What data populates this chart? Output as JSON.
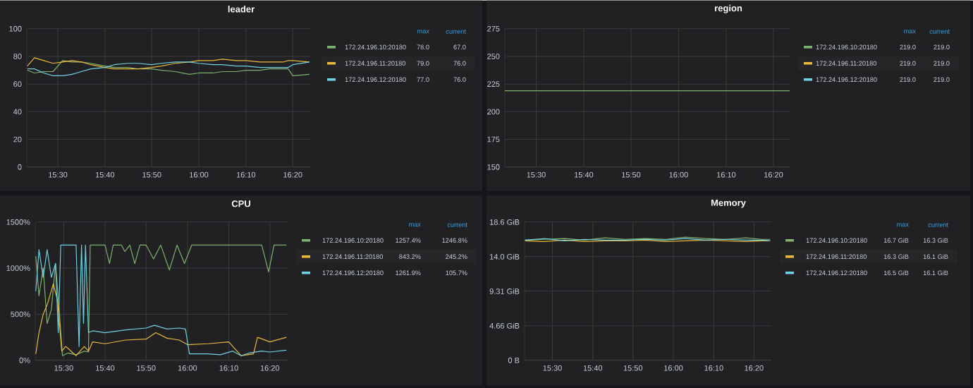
{
  "chart_data": [
    {
      "type": "line",
      "title": "leader",
      "x": [
        15.392,
        15.417,
        15.45,
        15.483,
        15.517,
        15.55,
        15.583,
        15.617,
        15.667,
        15.7,
        15.75,
        15.783,
        15.833,
        15.867,
        15.917,
        15.967,
        16.0,
        16.05,
        16.083,
        16.133,
        16.167,
        16.217,
        16.25,
        16.3,
        16.317,
        16.333,
        16.392
      ],
      "series": [
        {
          "name": "172.24.196.10:20180",
          "color": "#7eb26d",
          "values": [
            70,
            68,
            69,
            69,
            77,
            76,
            76,
            75,
            73,
            72,
            72,
            71,
            71,
            70,
            69,
            67,
            68,
            68,
            69,
            69,
            70,
            70,
            71,
            71,
            71,
            66,
            67
          ]
        },
        {
          "name": "172.24.196.11:20180",
          "color": "#eab839",
          "values": [
            73,
            79,
            77,
            75,
            76,
            77,
            76,
            74,
            72,
            71,
            71,
            71,
            72,
            73,
            75,
            76,
            77,
            77,
            78,
            77,
            77,
            76,
            76,
            76,
            77,
            77,
            76
          ]
        },
        {
          "name": "172.24.196.12:20180",
          "color": "#6ed0e0",
          "values": [
            71,
            71,
            68,
            66,
            66,
            67,
            69,
            71,
            72,
            74,
            75,
            75,
            74,
            75,
            76,
            76,
            75,
            74,
            74,
            73,
            73,
            72,
            72,
            72,
            72,
            74,
            76
          ]
        }
      ],
      "xlim": [
        15.39,
        16.395
      ],
      "xticks": [
        {
          "value": 15.5,
          "label": "15:30"
        },
        {
          "value": 15.667,
          "label": "15:40"
        },
        {
          "value": 15.833,
          "label": "15:50"
        },
        {
          "value": 16.0,
          "label": "16:00"
        },
        {
          "value": 16.167,
          "label": "16:10"
        },
        {
          "value": 16.333,
          "label": "16:20"
        }
      ],
      "ylim": [
        0,
        100
      ],
      "yticks": [
        0,
        20,
        40,
        60,
        80,
        100
      ],
      "grid": true,
      "legend": "right",
      "marker": "none",
      "line_style": "solid",
      "annotations": [
        "max",
        "current",
        "78.0",
        "67.0",
        "79.0",
        "76.0",
        "77.0",
        "76.0"
      ]
    },
    {
      "type": "line",
      "title": "region",
      "x": [
        15.39,
        16.39
      ],
      "series": [
        {
          "name": "172.24.196.10:20180",
          "color": "#7eb26d",
          "values": [
            219,
            219
          ]
        },
        {
          "name": "172.24.196.11:20180",
          "color": "#eab839",
          "values": [
            null,
            null
          ]
        },
        {
          "name": "172.24.196.12:20180",
          "color": "#6ed0e0",
          "values": [
            null,
            null
          ]
        }
      ],
      "xlim": [
        15.39,
        16.39
      ],
      "xticks": [
        {
          "value": 15.5,
          "label": "15:30"
        },
        {
          "value": 15.667,
          "label": "15:40"
        },
        {
          "value": 15.833,
          "label": "15:50"
        },
        {
          "value": 16.0,
          "label": "16:00"
        },
        {
          "value": 16.167,
          "label": "16:10"
        },
        {
          "value": 16.333,
          "label": "16:20"
        }
      ],
      "ylim": [
        150,
        275
      ],
      "yticks": [
        150,
        175,
        200,
        225,
        250,
        275
      ],
      "grid": true,
      "legend": "right",
      "marker": "none",
      "line_style": "solid",
      "annotations": [
        "max",
        "current",
        "219.0",
        "219.0",
        "219.0",
        "219.0",
        "219.0",
        "219.0"
      ]
    },
    {
      "type": "line",
      "title": "CPU",
      "series": [
        {
          "name": "172.24.196.10:20180",
          "color": "#7eb26d",
          "x": [
            15.387,
            15.4,
            15.417,
            15.433,
            15.45,
            15.467,
            15.483,
            15.495,
            15.517,
            15.55,
            15.583,
            15.6,
            15.607,
            15.667,
            15.685,
            15.7,
            15.733,
            15.747,
            15.767,
            15.787,
            15.808,
            15.833,
            15.863,
            15.892,
            15.927,
            15.958,
            15.988,
            16.017,
            16.167,
            16.3,
            16.328,
            16.35,
            16.4
          ],
          "values": [
            1130,
            700,
            1000,
            400,
            550,
            1050,
            500,
            50,
            80,
            60,
            100,
            90,
            1250,
            1250,
            1050,
            1250,
            1250,
            1180,
            1250,
            1050,
            1250,
            1250,
            1100,
            1250,
            980,
            1250,
            1050,
            1250,
            1250,
            1250,
            960,
            1250,
            1250
          ]
        },
        {
          "name": "172.24.196.11:20180",
          "color": "#eab839",
          "x": [
            15.387,
            15.4,
            15.417,
            15.433,
            15.458,
            15.475,
            15.492,
            15.508,
            15.517,
            15.55,
            15.583,
            15.6,
            15.617,
            15.667,
            15.75,
            15.833,
            15.872,
            15.917,
            15.967,
            16.0,
            16.083,
            16.167,
            16.2,
            16.217,
            16.267,
            16.283,
            16.333,
            16.4
          ],
          "values": [
            70,
            300,
            500,
            600,
            830,
            650,
            100,
            150,
            130,
            50,
            150,
            100,
            200,
            180,
            220,
            230,
            300,
            240,
            220,
            170,
            180,
            200,
            100,
            50,
            70,
            250,
            200,
            250
          ]
        },
        {
          "name": "172.24.196.12:20180",
          "color": "#6ed0e0",
          "x": [
            15.387,
            15.4,
            15.417,
            15.433,
            15.45,
            15.467,
            15.478,
            15.488,
            15.5,
            15.55,
            15.562,
            15.572,
            15.58,
            15.588,
            15.6,
            15.617,
            15.667,
            15.75,
            15.833,
            15.867,
            15.917,
            15.967,
            15.992,
            16.008,
            16.083,
            16.133,
            16.183,
            16.217,
            16.25,
            16.3,
            16.333,
            16.4
          ],
          "values": [
            750,
            1200,
            900,
            1200,
            900,
            1050,
            300,
            1250,
            1250,
            1250,
            150,
            1250,
            400,
            1250,
            300,
            320,
            300,
            330,
            350,
            380,
            340,
            350,
            340,
            70,
            70,
            60,
            100,
            50,
            80,
            100,
            90,
            110
          ]
        }
      ],
      "xlim": [
        15.385,
        16.405
      ],
      "xticks": [
        {
          "value": 15.5,
          "label": "15:30"
        },
        {
          "value": 15.667,
          "label": "15:40"
        },
        {
          "value": 15.833,
          "label": "15:50"
        },
        {
          "value": 16.0,
          "label": "16:00"
        },
        {
          "value": 16.167,
          "label": "16:10"
        },
        {
          "value": 16.333,
          "label": "16:20"
        }
      ],
      "ylim": [
        0,
        1500
      ],
      "yticks": [
        {
          "value": 0,
          "label": "0%"
        },
        {
          "value": 500,
          "label": "500%"
        },
        {
          "value": 1000,
          "label": "1000%"
        },
        {
          "value": 1500,
          "label": "1500%"
        }
      ],
      "grid": true,
      "legend": "right",
      "marker": "none",
      "line_style": "solid",
      "annotations": [
        "max",
        "current",
        "1257.4%",
        "1246.8%",
        "843.2%",
        "245.2%",
        "1261.9%",
        "105.7%"
      ]
    },
    {
      "type": "line",
      "title": "Memory",
      "x": [
        15.387,
        15.467,
        15.55,
        15.633,
        15.717,
        15.8,
        15.883,
        15.967,
        16.05,
        16.133,
        16.217,
        16.3,
        16.367,
        16.4
      ],
      "series": [
        {
          "name": "172.24.196.10:20180",
          "color": "#7eb26d",
          "values": [
            16.2,
            16.3,
            16.4,
            16.2,
            16.5,
            16.3,
            16.4,
            16.3,
            16.6,
            16.4,
            16.3,
            16.5,
            16.3,
            16.3
          ]
        },
        {
          "name": "172.24.196.11:20180",
          "color": "#eab839",
          "values": [
            16.1,
            16.0,
            16.2,
            16.0,
            16.1,
            16.1,
            16.2,
            16.0,
            16.1,
            16.2,
            16.1,
            16.0,
            16.1,
            16.1
          ]
        },
        {
          "name": "172.24.196.12:20180",
          "color": "#6ed0e0",
          "values": [
            16.2,
            16.4,
            16.1,
            16.3,
            16.2,
            16.2,
            16.3,
            16.2,
            16.4,
            16.2,
            16.3,
            16.2,
            16.2,
            16.1
          ]
        }
      ],
      "xlim": [
        15.385,
        16.405
      ],
      "xticks": [
        {
          "value": 15.5,
          "label": "15:30"
        },
        {
          "value": 15.667,
          "label": "15:40"
        },
        {
          "value": 15.833,
          "label": "15:50"
        },
        {
          "value": 16.0,
          "label": "16:00"
        },
        {
          "value": 16.167,
          "label": "16:10"
        },
        {
          "value": 16.333,
          "label": "16:20"
        }
      ],
      "ylim": [
        0,
        18.63
      ],
      "yticks": [
        {
          "value": 0,
          "label": "0 B"
        },
        {
          "value": 4.66,
          "label": "4.66 GiB"
        },
        {
          "value": 9.31,
          "label": "9.31 GiB"
        },
        {
          "value": 13.97,
          "label": "14.0 GiB"
        },
        {
          "value": 18.63,
          "label": "18.6 GiB"
        }
      ],
      "grid": true,
      "legend": "right",
      "marker": "none",
      "line_style": "solid",
      "annotations": [
        "max",
        "current",
        "16.7 GiB",
        "16.3 GiB",
        "16.3 GiB",
        "16.1 GiB",
        "16.5 GiB",
        "16.1 GiB"
      ]
    }
  ]
}
